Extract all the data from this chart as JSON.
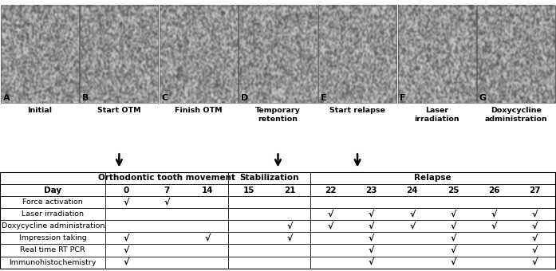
{
  "photo_labels": [
    "A",
    "B",
    "C",
    "D",
    "E",
    "F",
    "G"
  ],
  "photo_captions": [
    "Initial",
    "Start OTM",
    "Finish OTM",
    "Temporary\nretention",
    "Start relapse",
    "Laser\nirradiation",
    "Doxycycline\nadministration"
  ],
  "arrow_indices": [
    1,
    3,
    4
  ],
  "section_headers": [
    {
      "label": "Orthodontic tooth movement",
      "start": 0,
      "end": 3
    },
    {
      "label": "Stabilization",
      "start": 3,
      "end": 5
    },
    {
      "label": "Relapse",
      "start": 5,
      "end": 11
    }
  ],
  "days": [
    "0",
    "7",
    "14",
    "15",
    "21",
    "22",
    "23",
    "24",
    "25",
    "26",
    "27"
  ],
  "row_labels": [
    "Day",
    "Force activation",
    "Laser irradiation",
    "Doxycycline administration",
    "Impression taking",
    "Real time RT PCR",
    "Immunohistochemistry"
  ],
  "checkmarks": {
    "Force activation": [
      0,
      1
    ],
    "Laser irradiation": [
      5,
      6,
      7,
      8,
      9,
      10
    ],
    "Doxycycline administration": [
      4,
      5,
      6,
      7,
      8,
      9,
      10
    ],
    "Impression taking": [
      0,
      2,
      4,
      6,
      8,
      10
    ],
    "Real time RT PCR": [
      0,
      6,
      8,
      10
    ],
    "Immunohistochemistry": [
      0,
      6,
      8,
      10
    ]
  },
  "bg_color": "#ffffff"
}
